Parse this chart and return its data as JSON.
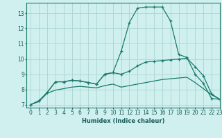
{
  "xlabel": "Humidex (Indice chaleur)",
  "ylabel": "",
  "xlim": [
    -0.5,
    23
  ],
  "ylim": [
    6.8,
    13.7
  ],
  "yticks": [
    7,
    8,
    9,
    10,
    11,
    12,
    13
  ],
  "xticks": [
    0,
    1,
    2,
    3,
    4,
    5,
    6,
    7,
    8,
    9,
    10,
    11,
    12,
    13,
    14,
    15,
    16,
    17,
    18,
    19,
    20,
    21,
    22,
    23
  ],
  "background_color": "#cff0ee",
  "grid_color": "#aad4d0",
  "line_color": "#1a7a6e",
  "line1_y": [
    7.0,
    7.25,
    7.8,
    8.5,
    8.5,
    8.6,
    8.55,
    8.45,
    8.35,
    9.0,
    9.1,
    10.5,
    12.4,
    13.35,
    13.42,
    13.42,
    13.42,
    12.5,
    10.3,
    10.1,
    9.0,
    8.4,
    7.4,
    7.35
  ],
  "line2_y": [
    7.0,
    7.25,
    7.8,
    8.5,
    8.5,
    8.6,
    8.55,
    8.45,
    8.35,
    9.0,
    9.1,
    9.0,
    9.2,
    9.55,
    9.8,
    9.85,
    9.9,
    9.95,
    10.0,
    10.05,
    9.5,
    8.9,
    7.7,
    7.35
  ],
  "line3_y": [
    7.0,
    7.2,
    7.75,
    7.95,
    8.05,
    8.15,
    8.2,
    8.15,
    8.1,
    8.25,
    8.35,
    8.15,
    8.25,
    8.35,
    8.45,
    8.55,
    8.65,
    8.7,
    8.75,
    8.8,
    8.45,
    8.05,
    7.65,
    7.35
  ]
}
